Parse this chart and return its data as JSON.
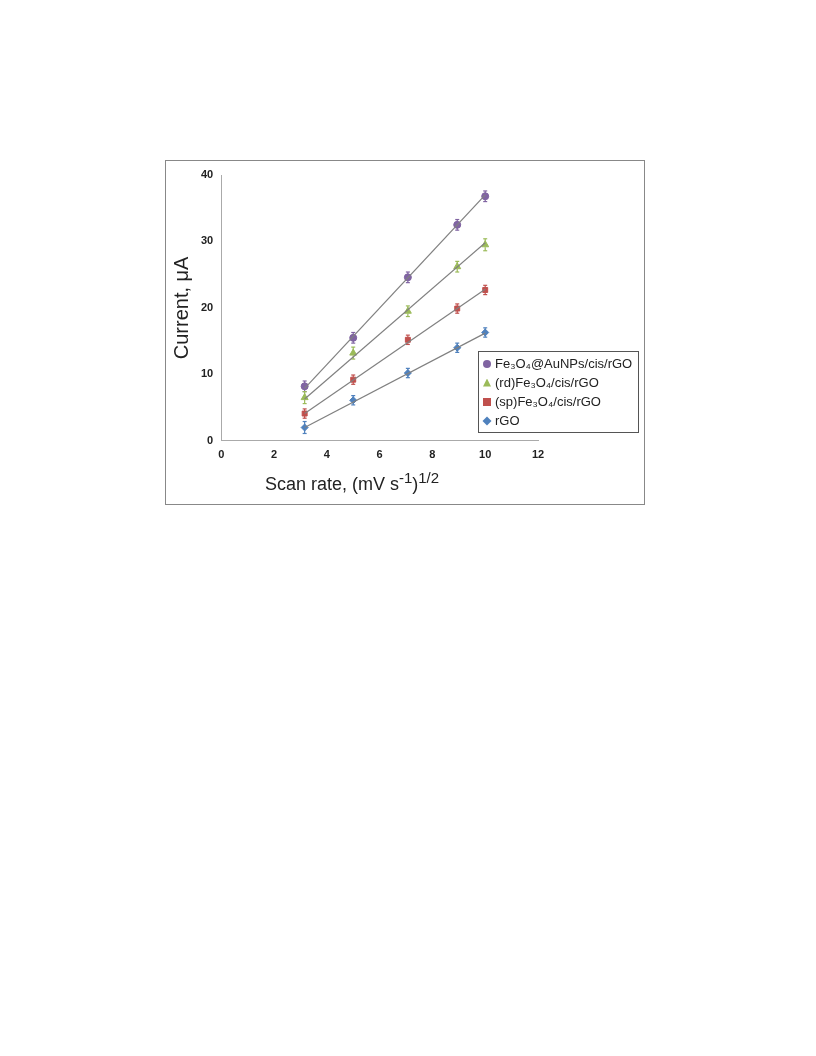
{
  "chart_data": {
    "type": "scatter",
    "xlabel": "Scan rate, (mV s$^{-1}$)$^{1/2}$",
    "ylabel": "Current, μA",
    "xlim": [
      0,
      12
    ],
    "xticks": [
      0,
      2,
      4,
      6,
      8,
      10,
      12
    ],
    "ylim": [
      0,
      40
    ],
    "yticks": [
      0,
      10,
      20,
      30,
      40
    ],
    "grid": false,
    "legend": "right",
    "series": [
      {
        "type": "line",
        "color": "#808080",
        "x": [
          3.16,
          10
        ],
        "values": [
          7.9,
          37.0
        ]
      },
      {
        "type": "line",
        "color": "#808080",
        "x": [
          3.16,
          10
        ],
        "values": [
          6.3,
          29.8
        ]
      },
      {
        "type": "line",
        "color": "#808080",
        "x": [
          3.16,
          10
        ],
        "values": [
          4.1,
          22.8
        ]
      },
      {
        "type": "line",
        "color": "#808080",
        "x": [
          3.16,
          10
        ],
        "values": [
          2.0,
          16.2
        ]
      },
      {
        "name": "Fe₃O₄@AuNPs/cis/rGO",
        "type": "scatter",
        "marker": "circle",
        "color": "#8064a2",
        "x": [
          3.16,
          5,
          7.07,
          8.94,
          10
        ],
        "values": [
          8.2,
          15.5,
          24.6,
          32.5,
          36.8
        ],
        "errors": [
          0.8,
          0.8,
          0.8,
          0.8,
          0.8
        ]
      },
      {
        "name": "(rd)Fe₃O₄/cis/rGO",
        "type": "scatter",
        "marker": "triangle",
        "color": "#9bbb59",
        "x": [
          3.16,
          5,
          7.07,
          8.94,
          10
        ],
        "values": [
          6.5,
          13.2,
          19.5,
          26.2,
          29.5
        ],
        "errors": [
          0.9,
          0.9,
          0.8,
          0.8,
          0.9
        ]
      },
      {
        "name": "(sp)Fe₃O₄/cis/rGO",
        "type": "scatter",
        "marker": "square",
        "color": "#c0504d",
        "x": [
          3.16,
          5,
          7.07,
          8.94,
          10
        ],
        "values": [
          4.1,
          9.2,
          15.2,
          19.9,
          22.7
        ],
        "errors": [
          0.7,
          0.7,
          0.7,
          0.7,
          0.7
        ]
      },
      {
        "name": "rGO",
        "type": "scatter",
        "marker": "diamond",
        "color": "#4f81bd",
        "x": [
          3.16,
          5,
          7.07,
          8.94,
          10
        ],
        "values": [
          2.0,
          6.1,
          10.2,
          14.0,
          16.3
        ],
        "errors": [
          0.9,
          0.7,
          0.7,
          0.7,
          0.7
        ]
      }
    ]
  }
}
